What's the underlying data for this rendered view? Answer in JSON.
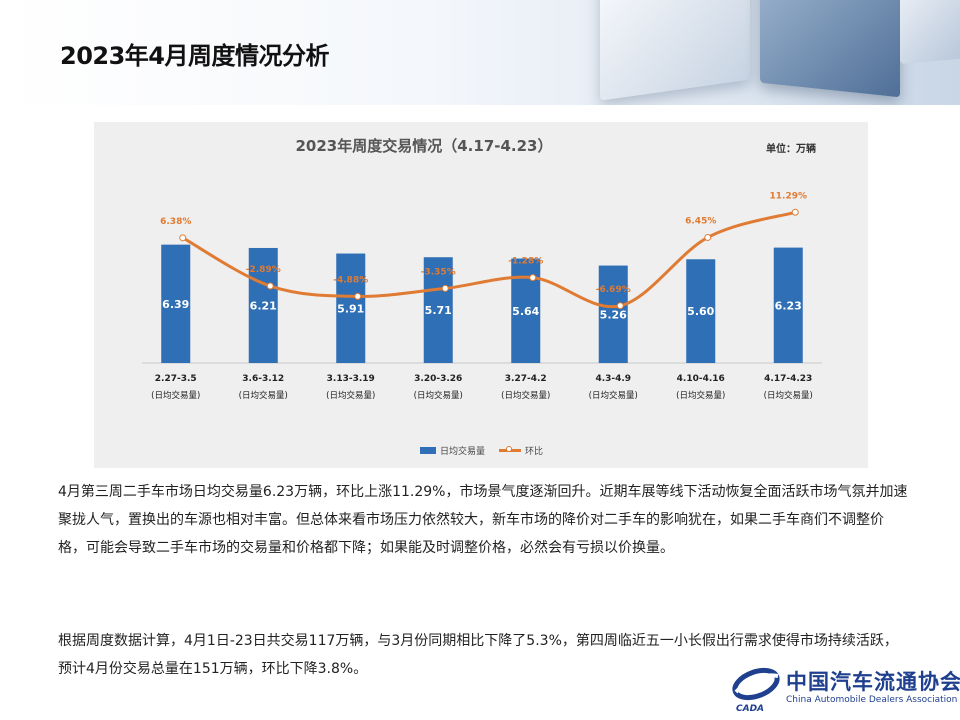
{
  "page": {
    "title": "2023年4月周度情况分析"
  },
  "chart_data": {
    "type": "bar",
    "title": "2023年周度交易情况（4.17-4.23）",
    "unit_label": "单位：万辆",
    "categories": [
      "2.27-3.5",
      "3.6-3.12",
      "3.13-3.19",
      "3.20-3.26",
      "3.27-4.2",
      "4.3-4.9",
      "4.10-4.16",
      "4.17-4.23"
    ],
    "category_sublabel": "(日均交易量)",
    "series": [
      {
        "name": "日均交易量",
        "type": "bar",
        "color": "#2e6fb5",
        "values": [
          6.39,
          6.21,
          5.91,
          5.71,
          5.64,
          5.26,
          5.6,
          6.23
        ],
        "labels": [
          "6.39",
          "6.21",
          "5.91",
          "5.71",
          "5.64",
          "5.26",
          "5.60",
          "6.23"
        ]
      },
      {
        "name": "环比",
        "type": "line",
        "color": "#e07b33",
        "values": [
          6.38,
          -2.89,
          -4.88,
          -3.35,
          -1.28,
          -6.69,
          6.45,
          11.29
        ],
        "labels": [
          "6.38%",
          "-2.89%",
          "-4.88%",
          "-3.35%",
          "-1.28%",
          "-6.69%",
          "6.45%",
          "11.29%"
        ]
      }
    ],
    "legend": {
      "position": "bottom",
      "items": [
        "日均交易量",
        "环比"
      ]
    }
  },
  "text": {
    "paragraph1": "4月第三周二手车市场日均交易量6.23万辆，环比上涨11.29%，市场景气度逐渐回升。近期车展等线下活动恢复全面活跃市场气氛并加速聚拢人气，置换出的车源也相对丰富。但总体来看市场压力依然较大，新车市场的降价对二手车的影响犹在，如果二手车商们不调整价格，可能会导致二手车市场的交易量和价格都下降；如果能及时调整价格，必然会有亏损以价换量。",
    "paragraph2": "根据周度数据计算，4月1日-23日共交易117万辆，与3月份同期相比下降了5.3%，第四周临近五一小长假出行需求使得市场持续活跃，预计4月份交易总量在151万辆，环比下降3.8%。"
  },
  "logo": {
    "cn": "中国汽车流通协会",
    "en": "China Automobile Dealers Association",
    "mark": "CADA"
  },
  "colors": {
    "bar": "#2e6fb5",
    "line": "#e07b33",
    "title": "#111111"
  }
}
